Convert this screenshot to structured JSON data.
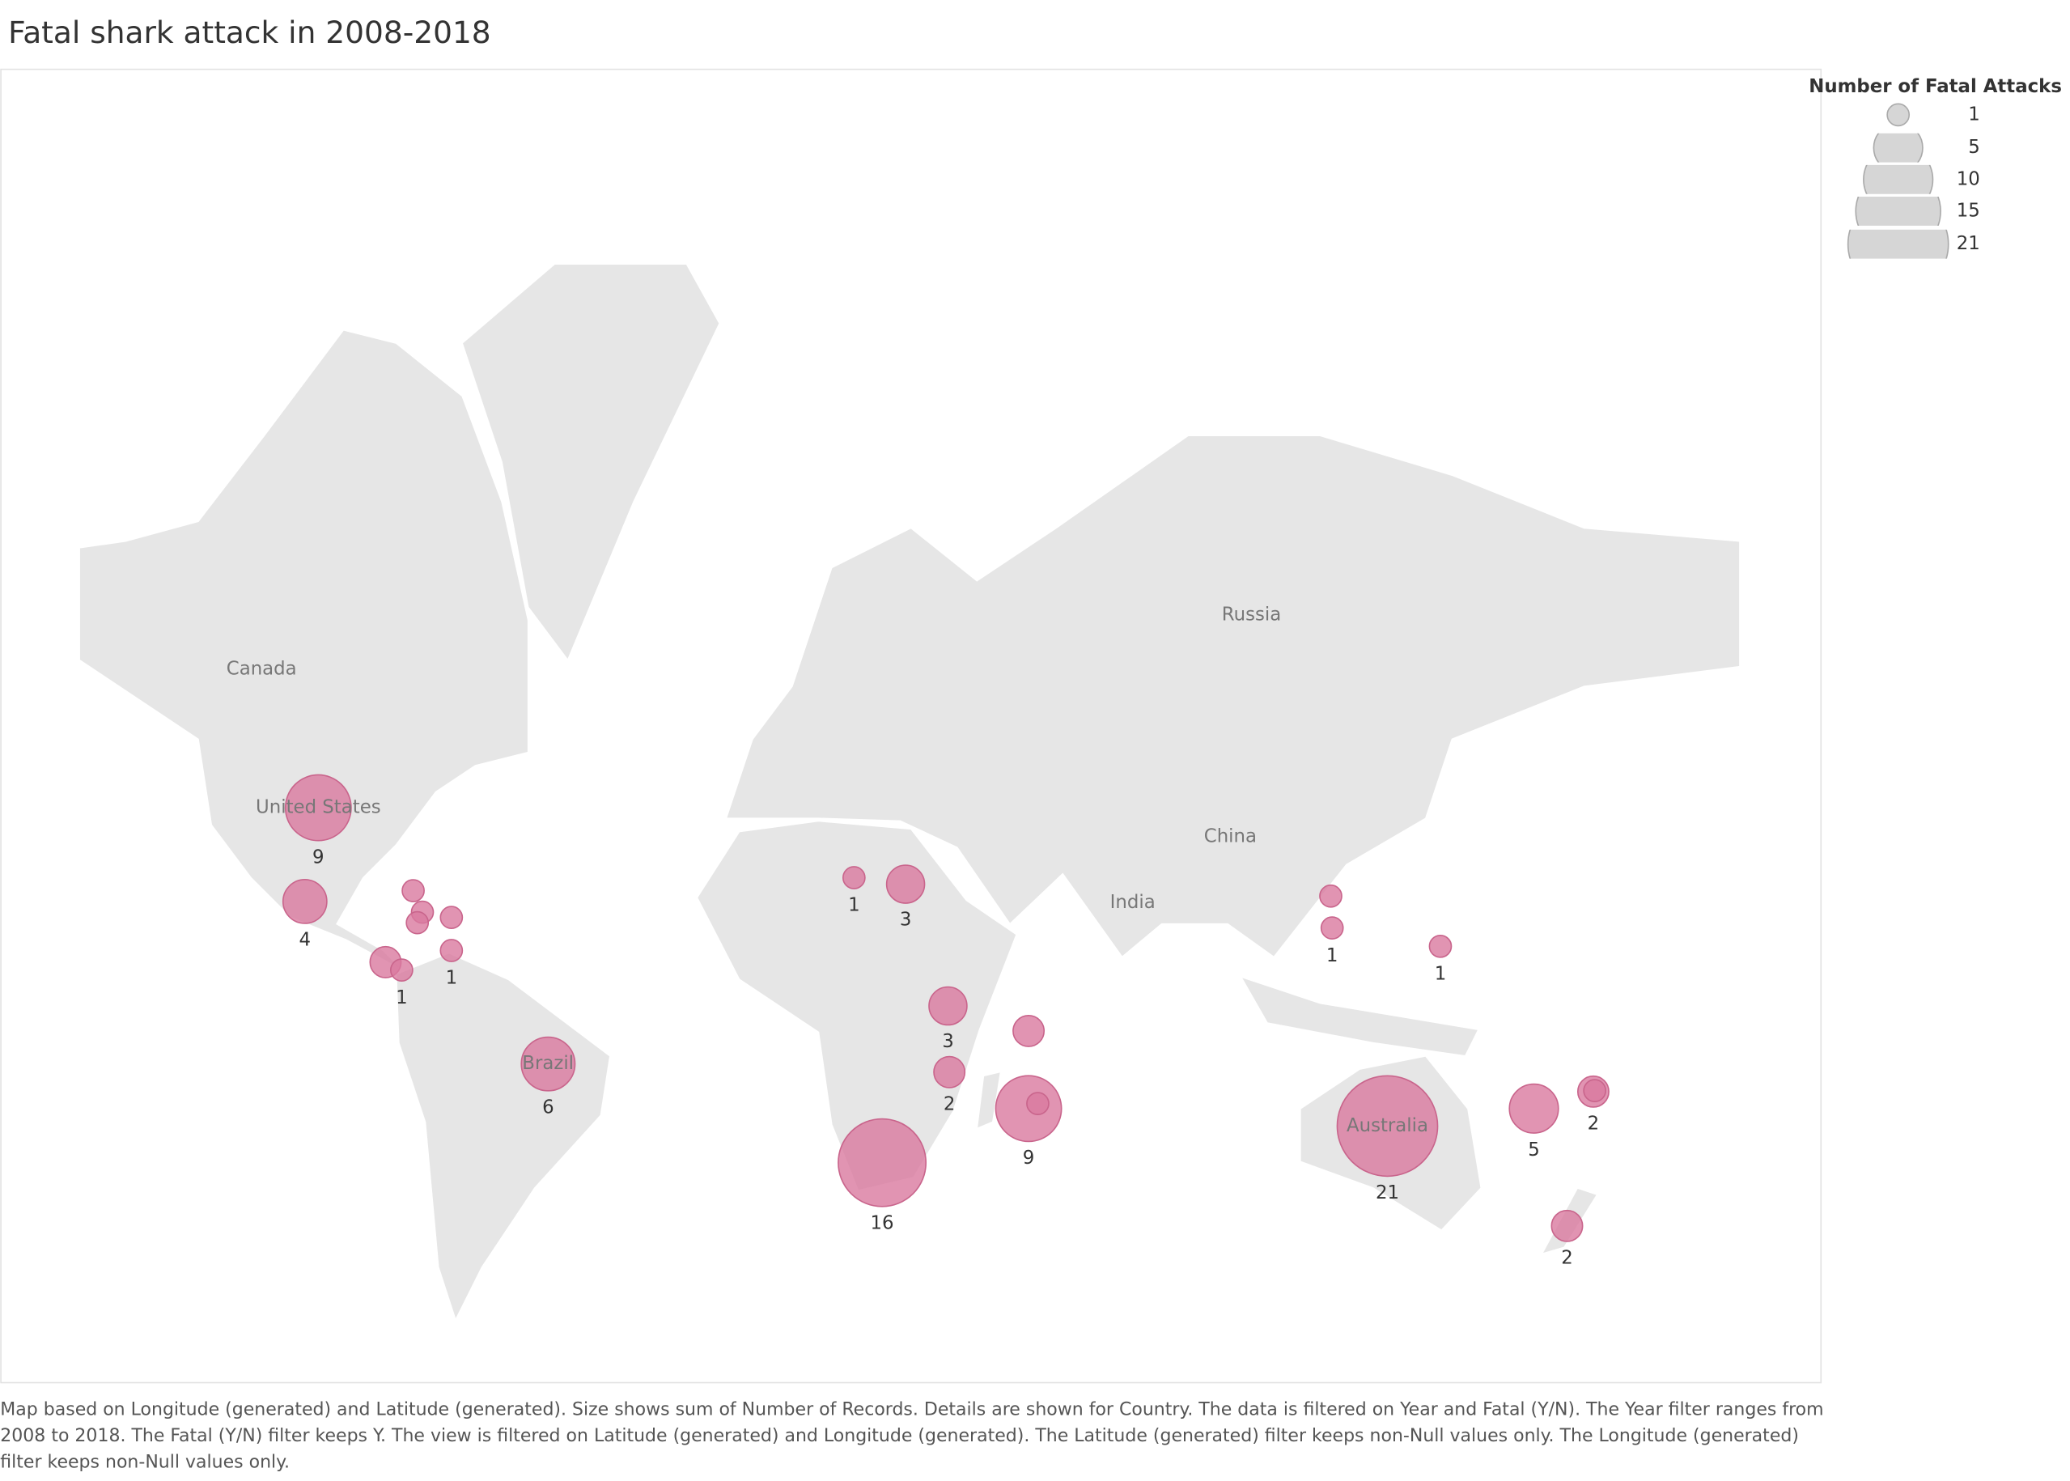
{
  "chart_data": {
    "type": "bubble-map",
    "title": "Fatal shark attack in 2008-2018",
    "color": "#d9799f",
    "country_labels": [
      "Canada",
      "Russia",
      "United States",
      "China",
      "India",
      "Brazil",
      "Australia"
    ],
    "points": [
      {
        "lon": -98.0,
        "lat": 37.2,
        "value": 9,
        "show_label": true
      },
      {
        "lon": -100.9,
        "lat": 19.4,
        "value": 4,
        "show_label": true
      },
      {
        "lon": -77.4,
        "lat": 21.6,
        "value": 1,
        "show_label": false
      },
      {
        "lon": -75.4,
        "lat": 17.2,
        "value": 1,
        "show_label": false
      },
      {
        "lon": -76.5,
        "lat": 15.0,
        "value": 1,
        "show_label": false
      },
      {
        "lon": -69.1,
        "lat": 16.1,
        "value": 1,
        "show_label": false
      },
      {
        "lon": -69.1,
        "lat": 9.1,
        "value": 1,
        "show_label": true
      },
      {
        "lon": -83.4,
        "lat": 6.6,
        "value": 2,
        "show_label": false
      },
      {
        "lon": -79.9,
        "lat": 4.9,
        "value": 1,
        "show_label": true
      },
      {
        "lon": -48.1,
        "lat": -15.3,
        "value": 6,
        "show_label": true
      },
      {
        "lon": 18.3,
        "lat": 24.2,
        "value": 1,
        "show_label": true
      },
      {
        "lon": 29.5,
        "lat": 22.9,
        "value": 3,
        "show_label": true
      },
      {
        "lon": 38.7,
        "lat": -2.9,
        "value": 3,
        "show_label": true
      },
      {
        "lon": 39.0,
        "lat": -17.0,
        "value": 2,
        "show_label": true
      },
      {
        "lon": 56.2,
        "lat": -8.3,
        "value": 2,
        "show_label": false
      },
      {
        "lon": 56.2,
        "lat": -24.4,
        "value": 9,
        "show_label": true
      },
      {
        "lon": 58.2,
        "lat": -23.4,
        "value": 1,
        "show_label": false
      },
      {
        "lon": 24.4,
        "lat": -34.6,
        "value": 16,
        "show_label": true
      },
      {
        "lon": 121.8,
        "lat": 20.5,
        "value": 1,
        "show_label": false
      },
      {
        "lon": 122.1,
        "lat": 13.9,
        "value": 1,
        "show_label": true
      },
      {
        "lon": 145.6,
        "lat": 10.0,
        "value": 1,
        "show_label": true
      },
      {
        "lon": 134.1,
        "lat": -27.8,
        "value": 21,
        "show_label": true
      },
      {
        "lon": 165.9,
        "lat": -24.4,
        "value": 5,
        "show_label": true
      },
      {
        "lon": 178.8,
        "lat": -21.0,
        "value": 2,
        "show_label": true
      },
      {
        "lon": 179.1,
        "lat": -20.8,
        "value": 1,
        "show_label": false
      },
      {
        "lon": 173.1,
        "lat": -45.1,
        "value": 2,
        "show_label": true
      }
    ]
  },
  "legend": {
    "title": "Number of Fatal Attacks",
    "sizes": [
      1,
      5,
      10,
      15,
      21
    ]
  },
  "caption": "Map based on Longitude (generated) and Latitude (generated).  Size shows sum of Number of Records.  Details are shown for Country. The data is filtered on Year and Fatal (Y/N). The Year filter ranges from 2008 to 2018. The Fatal (Y/N) filter keeps Y. The view is filtered on Latitude (generated) and Longitude (generated). The Latitude (generated) filter keeps non-Null values only. The Longitude (generated) filter keeps non-Null values only."
}
